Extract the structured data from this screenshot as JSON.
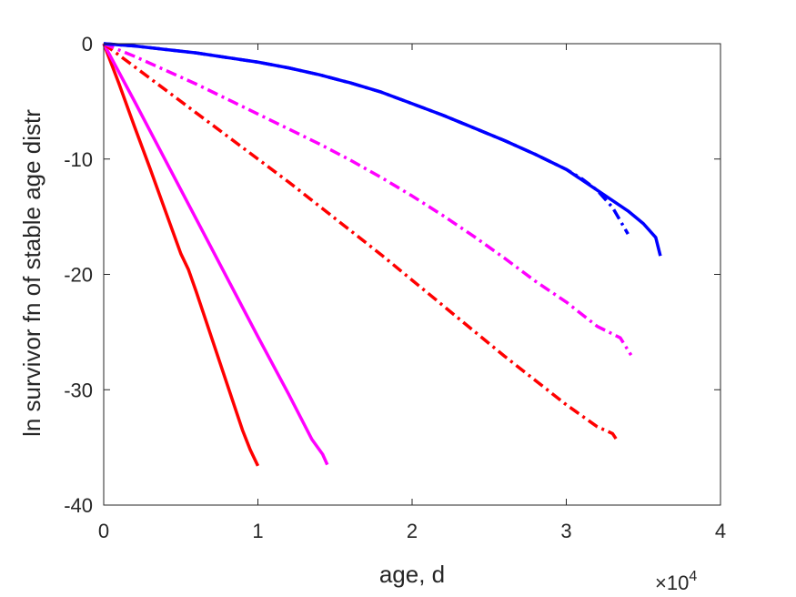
{
  "chart_data": {
    "type": "line",
    "xlabel": "age, d",
    "ylabel": "ln survivor fn of stable age distr",
    "x_exponent": "4",
    "x_exponent_prefix": "×10",
    "xlim": [
      0,
      40000
    ],
    "ylim": [
      -40,
      0
    ],
    "xticks": [
      0,
      10000,
      20000,
      30000,
      40000
    ],
    "xtick_labels": [
      "0",
      "1",
      "2",
      "3",
      "4"
    ],
    "yticks": [
      0,
      -10,
      -20,
      -30,
      -40
    ],
    "ytick_labels": [
      "0",
      "-10",
      "-20",
      "-30",
      "-40"
    ],
    "grid": false,
    "box": true,
    "series": [
      {
        "color": "#ff0000",
        "style": "solid",
        "x": [
          0,
          1000,
          2000,
          3000,
          4000,
          5000,
          5500,
          6000,
          6500,
          7000,
          7500,
          8000,
          8500,
          9000,
          9500,
          10000
        ],
        "y": [
          0,
          -3.5,
          -7.2,
          -10.8,
          -14.5,
          -18.2,
          -19.6,
          -21.5,
          -23.5,
          -25.5,
          -27.5,
          -29.5,
          -31.5,
          -33.5,
          -35.2,
          -36.6
        ]
      },
      {
        "color": "#ff00ff",
        "style": "solid",
        "x": [
          0,
          2000,
          4000,
          6000,
          8000,
          10000,
          12000,
          13500,
          14200,
          14500
        ],
        "y": [
          0,
          -5.0,
          -10.1,
          -15.2,
          -20.3,
          -25.4,
          -30.4,
          -34.3,
          -35.6,
          -36.5
        ]
      },
      {
        "color": "#ff0000",
        "style": "dashdot",
        "x": [
          0,
          2000,
          4000,
          6000,
          8000,
          10000,
          12000,
          14000,
          16000,
          18000,
          20000,
          22000,
          24000,
          26000,
          28000,
          30000,
          32000,
          33000,
          33300
        ],
        "y": [
          0,
          -2.0,
          -4.0,
          -6.0,
          -8.0,
          -10.0,
          -12.0,
          -14.1,
          -16.2,
          -18.3,
          -20.5,
          -22.7,
          -24.9,
          -27.1,
          -29.2,
          -31.3,
          -33.2,
          -33.8,
          -34.4
        ]
      },
      {
        "color": "#ff00ff",
        "style": "dashdot",
        "x": [
          0,
          2000,
          4000,
          6000,
          8000,
          10000,
          12000,
          14000,
          16000,
          18000,
          20000,
          22000,
          24000,
          26000,
          28000,
          30000,
          32000,
          33500,
          34200
        ],
        "y": [
          0,
          -1.1,
          -2.3,
          -3.5,
          -4.8,
          -6.1,
          -7.4,
          -8.7,
          -10.1,
          -11.6,
          -13.2,
          -14.9,
          -16.7,
          -18.6,
          -20.6,
          -22.4,
          -24.5,
          -25.5,
          -27.0
        ]
      },
      {
        "color": "#0000ff",
        "style": "dashdot",
        "x": [
          0,
          2000,
          4000,
          6000,
          8000,
          10000,
          12000,
          14000,
          16000,
          18000,
          20000,
          22000,
          24000,
          26000,
          28000,
          30000,
          31000,
          32000,
          33000,
          34000
        ],
        "y": [
          0,
          -0.2,
          -0.5,
          -0.8,
          -1.2,
          -1.6,
          -2.1,
          -2.7,
          -3.4,
          -4.2,
          -5.2,
          -6.2,
          -7.3,
          -8.4,
          -9.6,
          -10.9,
          -11.7,
          -12.7,
          -14.2,
          -16.5
        ]
      },
      {
        "color": "#0000ff",
        "style": "solid",
        "x": [
          0,
          2000,
          4000,
          6000,
          8000,
          10000,
          12000,
          14000,
          16000,
          18000,
          20000,
          22000,
          24000,
          26000,
          28000,
          30000,
          32000,
          34000,
          35000,
          35800,
          36100
        ],
        "y": [
          0,
          -0.2,
          -0.5,
          -0.8,
          -1.2,
          -1.6,
          -2.1,
          -2.7,
          -3.4,
          -4.2,
          -5.2,
          -6.2,
          -7.3,
          -8.4,
          -9.6,
          -10.9,
          -12.7,
          -14.5,
          -15.6,
          -16.8,
          -18.4
        ]
      }
    ]
  }
}
